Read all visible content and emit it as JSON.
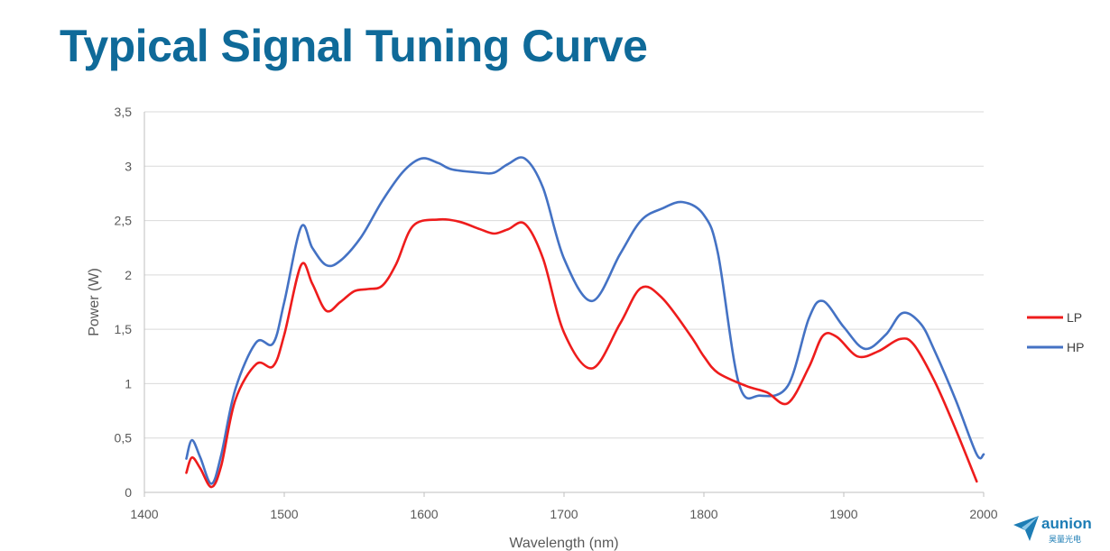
{
  "slide": {
    "title": "Typical Signal Tuning Curve"
  },
  "logo": {
    "name": "aunion",
    "subtitle": "昊量光电",
    "color": "#1d7db5"
  },
  "chart_data": {
    "type": "line",
    "title": "",
    "xlabel": "Wavelength (nm)",
    "ylabel": "Power (W)",
    "xlim": [
      1400,
      2000
    ],
    "ylim": [
      0,
      3.5
    ],
    "x_ticks": [
      1400,
      1500,
      1600,
      1700,
      1800,
      1900,
      2000
    ],
    "x_tick_labels": [
      "1400",
      "1500",
      "1600",
      "1700",
      "1800",
      "1900",
      "2000"
    ],
    "y_ticks": [
      0,
      0.5,
      1,
      1.5,
      2,
      2.5,
      3,
      3.5
    ],
    "y_tick_labels": [
      "0",
      "0,5",
      "1",
      "1,5",
      "2",
      "2,5",
      "3",
      "3,5"
    ],
    "grid": true,
    "legend_position": "right",
    "series": [
      {
        "name": "LP",
        "color": "#ee1c1c",
        "x": [
          1430,
          1434,
          1440,
          1448,
          1455,
          1465,
          1480,
          1492,
          1500,
          1512,
          1520,
          1530,
          1540,
          1550,
          1560,
          1570,
          1580,
          1592,
          1610,
          1625,
          1640,
          1650,
          1660,
          1672,
          1685,
          1700,
          1720,
          1740,
          1755,
          1770,
          1790,
          1800,
          1810,
          1830,
          1845,
          1860,
          1875,
          1885,
          1895,
          1910,
          1925,
          1940,
          1950,
          1965,
          1980,
          1995
        ],
        "y": [
          0.18,
          0.32,
          0.22,
          0.05,
          0.25,
          0.85,
          1.18,
          1.16,
          1.45,
          2.09,
          1.92,
          1.67,
          1.75,
          1.85,
          1.87,
          1.9,
          2.1,
          2.45,
          2.51,
          2.49,
          2.42,
          2.38,
          2.42,
          2.47,
          2.15,
          1.47,
          1.14,
          1.55,
          1.88,
          1.79,
          1.45,
          1.25,
          1.1,
          0.98,
          0.92,
          0.82,
          1.15,
          1.44,
          1.43,
          1.25,
          1.3,
          1.41,
          1.36,
          1.02,
          0.58,
          0.1
        ]
      },
      {
        "name": "HP",
        "color": "#4472c4",
        "x": [
          1430,
          1434,
          1440,
          1448,
          1455,
          1465,
          1480,
          1492,
          1500,
          1512,
          1520,
          1530,
          1540,
          1555,
          1570,
          1585,
          1598,
          1610,
          1620,
          1640,
          1650,
          1660,
          1672,
          1685,
          1700,
          1720,
          1740,
          1755,
          1770,
          1785,
          1800,
          1810,
          1825,
          1840,
          1860,
          1875,
          1885,
          1900,
          1915,
          1930,
          1942,
          1955,
          1965,
          1980,
          1995,
          2000
        ],
        "y": [
          0.31,
          0.48,
          0.32,
          0.08,
          0.35,
          0.95,
          1.38,
          1.37,
          1.75,
          2.44,
          2.25,
          2.09,
          2.13,
          2.35,
          2.68,
          2.95,
          3.07,
          3.03,
          2.97,
          2.94,
          2.94,
          3.02,
          3.07,
          2.8,
          2.15,
          1.76,
          2.19,
          2.5,
          2.61,
          2.67,
          2.55,
          2.2,
          1.0,
          0.89,
          0.98,
          1.6,
          1.76,
          1.52,
          1.32,
          1.45,
          1.65,
          1.55,
          1.3,
          0.85,
          0.35,
          0.35
        ]
      }
    ]
  }
}
